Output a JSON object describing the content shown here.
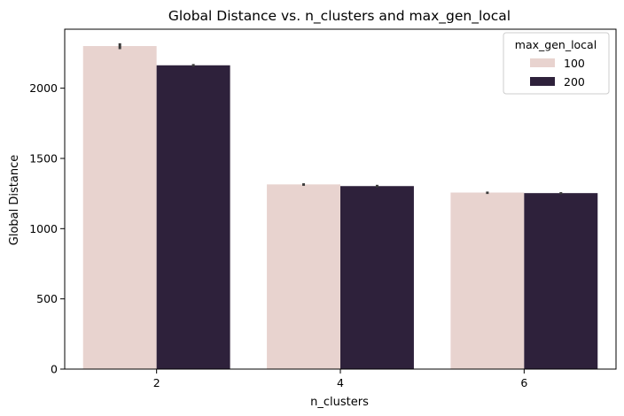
{
  "chart_data": {
    "type": "bar",
    "title": "Global Distance vs. n_clusters and max_gen_local",
    "xlabel": "n_clusters",
    "ylabel": "Global Distance",
    "categories": [
      "2",
      "4",
      "6"
    ],
    "ylim": [
      0,
      2420
    ],
    "yticks": [
      0,
      500,
      1000,
      1500,
      2000
    ],
    "grid": false,
    "legend": {
      "title": "max_gen_local",
      "placement": "top-right"
    },
    "series": [
      {
        "name": "100",
        "color": "#e8d3cf",
        "values": [
          2300,
          1315,
          1257
        ],
        "err_low": [
          2278,
          1305,
          1247
        ],
        "err_high": [
          2320,
          1323,
          1264
        ]
      },
      {
        "name": "200",
        "color": "#2e213b",
        "values": [
          2163,
          1303,
          1253
        ],
        "err_low": [
          2154,
          1294,
          1245
        ],
        "err_high": [
          2172,
          1312,
          1260
        ]
      }
    ],
    "errorbar_color": "#3b3b3b"
  }
}
